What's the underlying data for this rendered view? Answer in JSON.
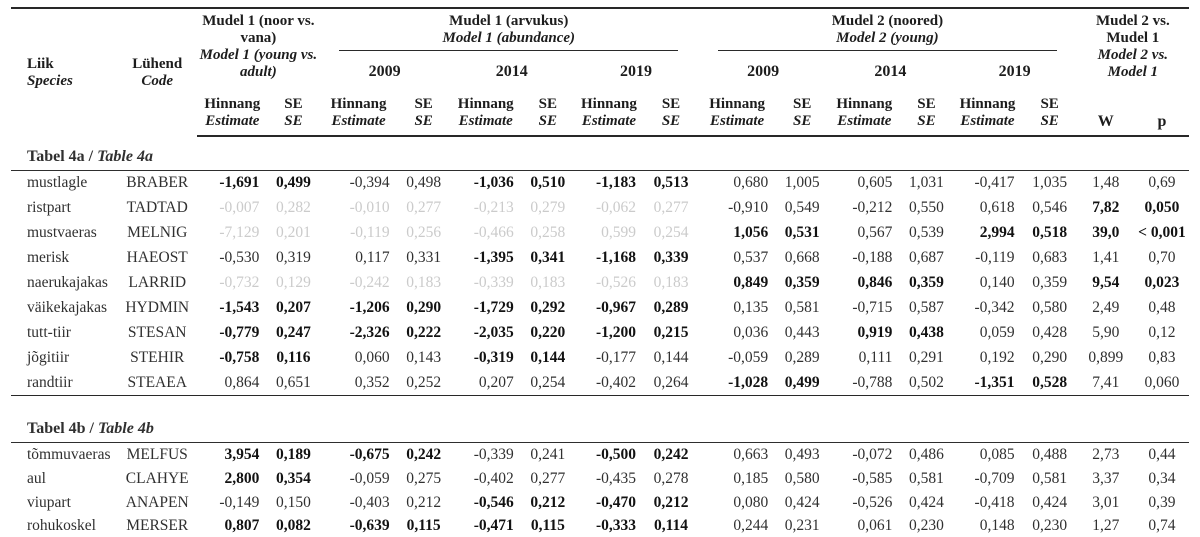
{
  "header": {
    "liik_et": "Liik",
    "liik_en": "Species",
    "code_et": "Lühend",
    "code_en": "Code",
    "m1_et": "Mudel 1 (noor vs. vana)",
    "m1_en": "Model 1 (young vs. adult)",
    "m1ab_et": "Mudel 1 (arvukus)",
    "m1ab_en": "Model 1 (abundance)",
    "m2_et": "Mudel 2 (noored)",
    "m2_en": "Model 2 (young)",
    "m2vs_et": "Mudel 2 vs. Mudel 1",
    "m2vs_en": "Model 2 vs. Model 1",
    "years": [
      "2009",
      "2014",
      "2019"
    ],
    "est_et": "Hinnang",
    "est_en": "Estimate",
    "se_et": "SE",
    "se_en": "SE",
    "w": "W",
    "p": "p"
  },
  "value_columns": [
    "m1_estimate",
    "m1_se",
    "ab2009_estimate",
    "ab2009_se",
    "ab2014_estimate",
    "ab2014_se",
    "ab2019_estimate",
    "ab2019_se",
    "y2009_estimate",
    "y2009_se",
    "y2014_estimate",
    "y2014_se",
    "y2019_estimate",
    "y2019_se",
    "W",
    "p"
  ],
  "style_legend": {
    "n": "normal",
    "b": "bold",
    "g": "gray"
  },
  "sections": [
    {
      "title_et": "Tabel 4a",
      "title_en": "Table 4a",
      "rows": [
        {
          "species": "mustlagle",
          "code": "BRABER",
          "values": [
            "-1,691",
            "0,499",
            "-0,394",
            "0,498",
            "-1,036",
            "0,510",
            "-1,183",
            "0,513",
            "0,680",
            "1,005",
            "0,605",
            "1,031",
            "-0,417",
            "1,035",
            "1,48",
            "0,69"
          ],
          "styles": "bbnnbbbbnnnnnnnn"
        },
        {
          "species": "ristpart",
          "code": "TADTAD",
          "values": [
            "-0,007",
            "0,282",
            "-0,010",
            "0,277",
            "-0,213",
            "0,279",
            "-0,062",
            "0,277",
            "-0,910",
            "0,549",
            "-0,212",
            "0,550",
            "0,618",
            "0,546",
            "7,82",
            "0,050"
          ],
          "styles": "ggggggggnnnnnnbb"
        },
        {
          "species": "mustvaeras",
          "code": "MELNIG",
          "values": [
            "-7,129",
            "0,201",
            "-0,119",
            "0,256",
            "-0,466",
            "0,258",
            "0,599",
            "0,254",
            "1,056",
            "0,531",
            "0,567",
            "0,539",
            "2,994",
            "0,518",
            "39,0",
            "< 0,001"
          ],
          "styles": "ggggggggbbnnbbbb"
        },
        {
          "species": "merisk",
          "code": "HAEOST",
          "values": [
            "-0,530",
            "0,319",
            "0,117",
            "0,331",
            "-1,395",
            "0,341",
            "-1,168",
            "0,339",
            "0,537",
            "0,668",
            "-0,188",
            "0,687",
            "-0,119",
            "0,683",
            "1,41",
            "0,70"
          ],
          "styles": "nnnnbbbbnnnnnnnn"
        },
        {
          "species": "naerukajakas",
          "code": "LARRID",
          "values": [
            "-0,732",
            "0,129",
            "-0,242",
            "0,183",
            "-0,339",
            "0,183",
            "-0,526",
            "0,183",
            "0,849",
            "0,359",
            "0,846",
            "0,359",
            "0,140",
            "0,359",
            "9,54",
            "0,023"
          ],
          "styles": "ggggggggbbbbnnbb"
        },
        {
          "species": "väikekajakas",
          "code": "HYDMIN",
          "values": [
            "-1,543",
            "0,207",
            "-1,206",
            "0,290",
            "-1,729",
            "0,292",
            "-0,967",
            "0,289",
            "0,135",
            "0,581",
            "-0,715",
            "0,587",
            "-0,342",
            "0,580",
            "2,49",
            "0,48"
          ],
          "styles": "bbbbbbbbnnnnnnnn"
        },
        {
          "species": "tutt-tiir",
          "code": "STESAN",
          "values": [
            "-0,779",
            "0,247",
            "-2,326",
            "0,222",
            "-2,035",
            "0,220",
            "-1,200",
            "0,215",
            "0,036",
            "0,443",
            "0,919",
            "0,438",
            "0,059",
            "0,428",
            "5,90",
            "0,12"
          ],
          "styles": "bbbbbbbbnnbbnnnn"
        },
        {
          "species": "jõgitiir",
          "code": "STEHIR",
          "values": [
            "-0,758",
            "0,116",
            "0,060",
            "0,143",
            "-0,319",
            "0,144",
            "-0,177",
            "0,144",
            "-0,059",
            "0,289",
            "0,111",
            "0,291",
            "0,192",
            "0,290",
            "0,899",
            "0,83"
          ],
          "styles": "bbnnbbnnnnnnnnnn"
        },
        {
          "species": "randtiir",
          "code": "STEAEA",
          "values": [
            "0,864",
            "0,651",
            "0,352",
            "0,252",
            "0,207",
            "0,254",
            "-0,402",
            "0,264",
            "-1,028",
            "0,499",
            "-0,788",
            "0,502",
            "-1,351",
            "0,528",
            "7,41",
            "0,060"
          ],
          "styles": "nnnnnnnnbbnnbbnn"
        }
      ]
    },
    {
      "title_et": "Tabel 4b",
      "title_en": "Table 4b",
      "rows": [
        {
          "species": "tõmmuvaeras",
          "code": "MELFUS",
          "values": [
            "3,954",
            "0,189",
            "-0,675",
            "0,242",
            "-0,339",
            "0,241",
            "-0,500",
            "0,242",
            "0,663",
            "0,493",
            "-0,072",
            "0,486",
            "0,085",
            "0,488",
            "2,73",
            "0,44"
          ],
          "styles": "bbbbnnbbnnnnnnnn"
        },
        {
          "species": "aul",
          "code": "CLAHYE",
          "values": [
            "2,800",
            "0,354",
            "-0,059",
            "0,275",
            "-0,402",
            "0,277",
            "-0,435",
            "0,278",
            "0,185",
            "0,580",
            "-0,585",
            "0,581",
            "-0,709",
            "0,581",
            "3,37",
            "0,34"
          ],
          "styles": "bbnnnnnnnnnnnnnn"
        },
        {
          "species": "viupart",
          "code": "ANAPEN",
          "values": [
            "-0,149",
            "0,150",
            "-0,403",
            "0,212",
            "-0,546",
            "0,212",
            "-0,470",
            "0,212",
            "0,080",
            "0,424",
            "-0,526",
            "0,424",
            "-0,418",
            "0,424",
            "3,01",
            "0,39"
          ],
          "styles": "nnnnbbbbnnnnnnnn"
        },
        {
          "species": "rohukoskel",
          "code": "MERSER",
          "values": [
            "0,807",
            "0,082",
            "-0,639",
            "0,115",
            "-0,471",
            "0,115",
            "-0,333",
            "0,114",
            "0,244",
            "0,231",
            "0,061",
            "0,230",
            "0,148",
            "0,230",
            "1,27",
            "0,74"
          ],
          "styles": "bbbbbbbbnnnnnnnn"
        }
      ]
    }
  ]
}
